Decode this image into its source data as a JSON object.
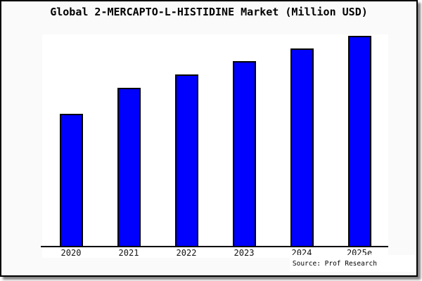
{
  "window": {
    "background_color": "#fafafa",
    "plot_background_color": "#ffffff",
    "border_color": "#000000"
  },
  "chart_data": {
    "type": "bar",
    "title": "Global 2-MERCAPTO-L-HISTIDINE Market (Million USD)",
    "categories": [
      "2020",
      "2021",
      "2022",
      "2023",
      "2024",
      "2025e"
    ],
    "values": [
      188,
      225,
      244,
      263,
      281,
      299
    ],
    "value_note": "no y-axis scale shown; values are relative bar heights (pixels)",
    "xlabel": "",
    "ylabel": "",
    "ylim": [
      0,
      301
    ],
    "grid": false,
    "legend": false,
    "bar_fill_color": "#0000ff",
    "bar_border_color": "#000000",
    "axis_line_color": "#000000"
  },
  "source": {
    "label": "Source: Prof Research"
  }
}
